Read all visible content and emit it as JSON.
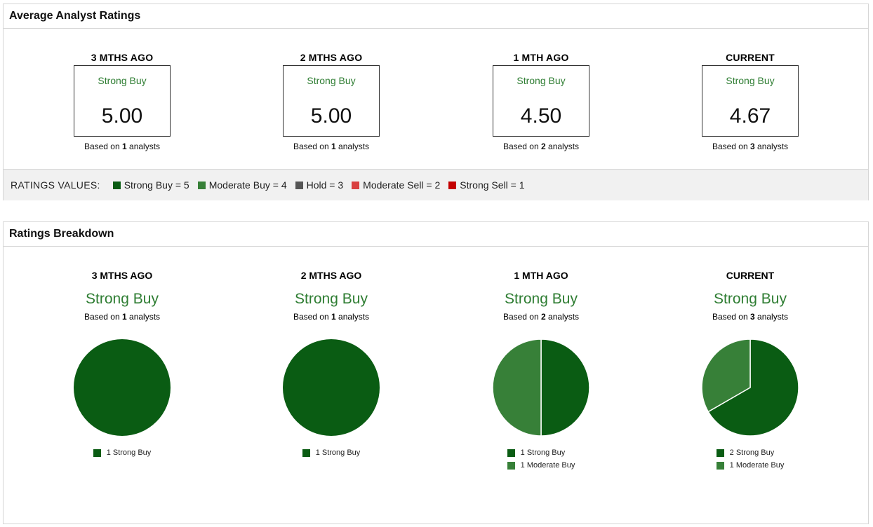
{
  "colors": {
    "strong_buy": "#0a5c13",
    "moderate_buy": "#378038",
    "hold": "#555555",
    "moderate_sell": "#d94040",
    "strong_sell": "#c40000",
    "label_green": "#2e7d32"
  },
  "average": {
    "title": "Average Analyst Ratings",
    "columns": [
      {
        "period": "3 MTHS AGO",
        "label": "Strong Buy",
        "value": "5.00",
        "based_prefix": "Based on",
        "count": "1",
        "based_suffix": "analysts"
      },
      {
        "period": "2 MTHS AGO",
        "label": "Strong Buy",
        "value": "5.00",
        "based_prefix": "Based on",
        "count": "1",
        "based_suffix": "analysts"
      },
      {
        "period": "1 MTH AGO",
        "label": "Strong Buy",
        "value": "4.50",
        "based_prefix": "Based on",
        "count": "2",
        "based_suffix": "analysts"
      },
      {
        "period": "CURRENT",
        "label": "Strong Buy",
        "value": "4.67",
        "based_prefix": "Based on",
        "count": "3",
        "based_suffix": "analysts"
      }
    ],
    "legend": {
      "title": "RATINGS VALUES:",
      "items": [
        {
          "label": "Strong Buy = 5",
          "color": "#0a5c13"
        },
        {
          "label": "Moderate Buy = 4",
          "color": "#378038"
        },
        {
          "label": "Hold = 3",
          "color": "#555555"
        },
        {
          "label": "Moderate Sell = 2",
          "color": "#d94040"
        },
        {
          "label": "Strong Sell = 1",
          "color": "#c40000"
        }
      ]
    }
  },
  "breakdown": {
    "title": "Ratings Breakdown",
    "columns": [
      {
        "period": "3 MTHS AGO",
        "label": "Strong Buy",
        "based_prefix": "Based on",
        "count": "1",
        "based_suffix": "analysts",
        "legend": [
          "1 Strong Buy"
        ]
      },
      {
        "period": "2 MTHS AGO",
        "label": "Strong Buy",
        "based_prefix": "Based on",
        "count": "1",
        "based_suffix": "analysts",
        "legend": [
          "1 Strong Buy"
        ]
      },
      {
        "period": "1 MTH AGO",
        "label": "Strong Buy",
        "based_prefix": "Based on",
        "count": "2",
        "based_suffix": "analysts",
        "legend": [
          "1 Strong Buy",
          "1 Moderate Buy"
        ]
      },
      {
        "period": "CURRENT",
        "label": "Strong Buy",
        "based_prefix": "Based on",
        "count": "3",
        "based_suffix": "analysts",
        "legend": [
          "2 Strong Buy",
          "1 Moderate Buy"
        ]
      }
    ]
  },
  "chart_data": [
    {
      "type": "pie",
      "categories": [
        "Strong Buy"
      ],
      "values": [
        1
      ],
      "colors": [
        "#0a5c13"
      ]
    },
    {
      "type": "pie",
      "categories": [
        "Strong Buy"
      ],
      "values": [
        1
      ],
      "colors": [
        "#0a5c13"
      ]
    },
    {
      "type": "pie",
      "categories": [
        "Strong Buy",
        "Moderate Buy"
      ],
      "values": [
        1,
        1
      ],
      "colors": [
        "#0a5c13",
        "#378038"
      ]
    },
    {
      "type": "pie",
      "categories": [
        "Strong Buy",
        "Moderate Buy"
      ],
      "values": [
        2,
        1
      ],
      "colors": [
        "#0a5c13",
        "#378038"
      ]
    }
  ]
}
